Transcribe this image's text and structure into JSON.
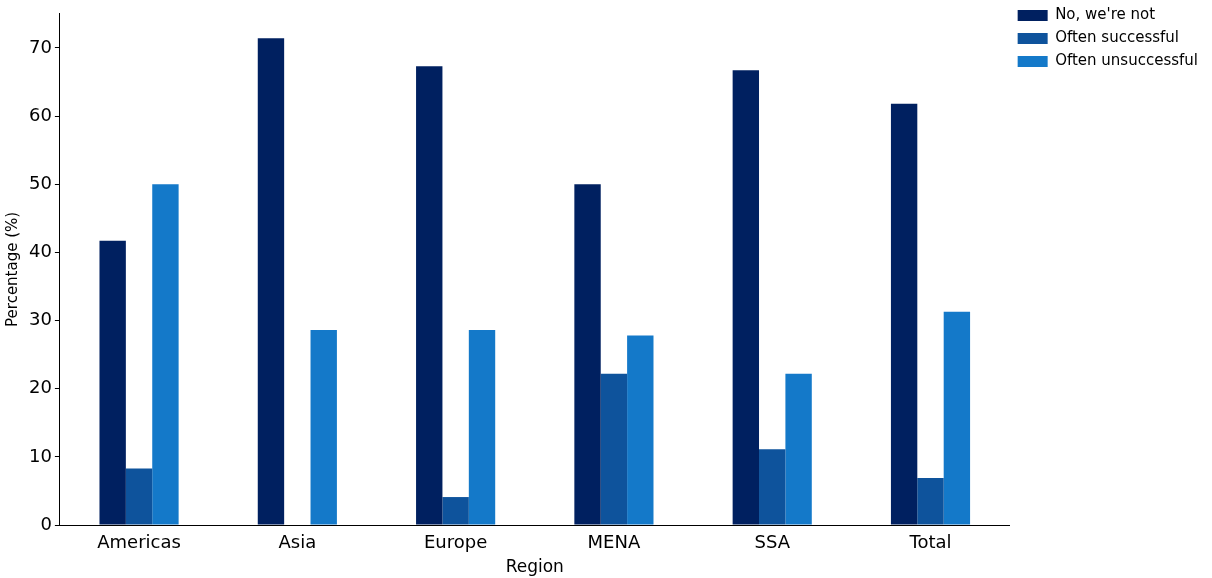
{
  "chart_data": {
    "type": "bar",
    "xlabel": "Region",
    "ylabel": "Percentage (%)",
    "categories": [
      "Americas",
      "Asia",
      "Europe",
      "MENA",
      "SSA",
      "Total"
    ],
    "series": [
      {
        "name": "No, we're not",
        "color": "#002060",
        "values": [
          41.7,
          71.4,
          67.3,
          50,
          66.7,
          61.8
        ]
      },
      {
        "name": "Often successful",
        "color": "#0e539c",
        "values": [
          8.3,
          0,
          4.1,
          22.2,
          11.1,
          6.9
        ]
      },
      {
        "name": "Often unsuccessful",
        "color": "#1479c9",
        "values": [
          50,
          28.6,
          28.6,
          27.8,
          22.2,
          31.3
        ]
      }
    ],
    "ylim": [
      0,
      75
    ],
    "yticks": [
      0,
      10,
      20,
      30,
      40,
      50,
      60,
      70
    ],
    "grid": false,
    "legend": "right"
  }
}
